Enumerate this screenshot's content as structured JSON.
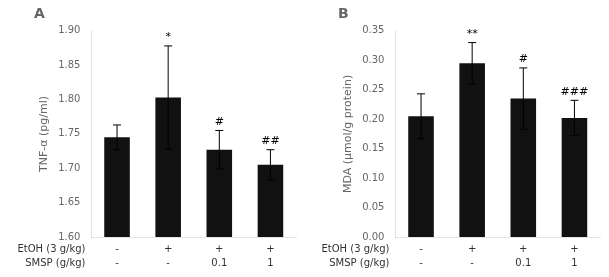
{
  "chart_data": [
    {
      "type": "bar",
      "title": "A",
      "y_label": "TNF-α (pg/ml)",
      "categories": [
        null,
        null,
        null,
        null
      ],
      "values": [
        1.745,
        1.803,
        1.727,
        1.705
      ],
      "errors": [
        0.018,
        0.075,
        0.028,
        0.022
      ],
      "significance": [
        null,
        "*",
        "#",
        "##"
      ],
      "annotations": [
        {
          "label": "EtOH (3 g/kg)",
          "values": [
            "-",
            "+",
            "+",
            "+"
          ]
        },
        {
          "label": "SMSP (g/kg)",
          "values": [
            "-",
            "-",
            "0.1",
            "1"
          ]
        }
      ],
      "color": "#111111",
      "ylim": [
        1.6,
        1.9
      ],
      "yticks": [
        {
          "value": 1.6,
          "label": "1.60"
        },
        1.65,
        {
          "value": 1.7,
          "label": "1.70"
        },
        1.75,
        {
          "value": 1.8,
          "label": "1.80"
        },
        1.85,
        {
          "value": 1.9,
          "label": "1.90"
        }
      ],
      "grid": false,
      "tick_labels": "y"
    },
    {
      "type": "bar",
      "title": "B",
      "y_label": "MDA (μmol/g protein)",
      "categories": [
        null,
        null,
        null,
        null
      ],
      "values": [
        0.205,
        0.295,
        0.235,
        0.202
      ],
      "errors": [
        0.038,
        0.035,
        0.052,
        0.03
      ],
      "significance": [
        null,
        "**",
        "#",
        "###"
      ],
      "annotations": [
        {
          "label": "EtOH (3 g/kg)",
          "values": [
            "-",
            "+",
            "+",
            "+"
          ]
        },
        {
          "label": "SMSP (g/kg)",
          "values": [
            "-",
            "-",
            "0.1",
            "1"
          ]
        }
      ],
      "color": "#111111",
      "ylim": [
        0,
        0.35
      ],
      "yticks": [
        {
          "value": 0,
          "label": "0.00"
        },
        0.05,
        {
          "value": 0.1,
          "label": "0.10"
        },
        0.15,
        {
          "value": 0.2,
          "label": "0.20"
        },
        0.25,
        {
          "value": 0.3,
          "label": "0.30"
        },
        0.35
      ],
      "grid": false,
      "tick_labels": "y"
    }
  ]
}
